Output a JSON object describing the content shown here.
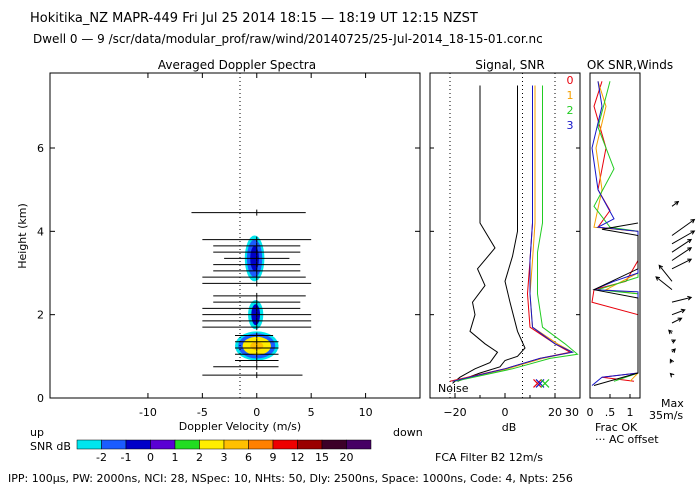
{
  "header": {
    "line1": "Hokitika_NZ   MAPR-449   Fri Jul 25 2014 18:15 — 18:19 UT 12:15 NZST",
    "line2": "Dwell  0 —  9   /scr/data/modular_prof/raw/wind/20140725/25-Jul-2014_18-15-01.cor.nc"
  },
  "panels": {
    "spectra_title": "Averaged Doppler Spectra",
    "signal_title": "Signal, SNR",
    "ok_title": "OK SNR,Winds"
  },
  "labels": {
    "up": "up",
    "down": "down",
    "snr_db": "SNR dB",
    "noise": "Noise",
    "frac_ok": "Frac OK",
    "ac_offset": "··· AC offset",
    "max_label": "Max",
    "max_value": "35m/s",
    "fca_filter": "FCA Filter B2 12m/s",
    "footer": "IPP: 100μs,  PW: 2000ns,  NCI: 28,  NSpec: 10,  NHts: 50,  Dly: 2500ns,  Space: 1000ns,  Code: 4,  Npts: 256"
  },
  "beam_legend": [
    {
      "label": "0",
      "color": "#e8000b"
    },
    {
      "label": "1",
      "color": "#f5a000"
    },
    {
      "label": "2",
      "color": "#22cc22"
    },
    {
      "label": "3",
      "color": "#1414c8"
    }
  ],
  "snr_scale": {
    "ticks": [
      "-2",
      "-1",
      "0",
      "1",
      "2",
      "3",
      "6",
      "9",
      "12",
      "15",
      "20"
    ],
    "colors": [
      "#00e5ee",
      "#1b5cff",
      "#0000c8",
      "#5a00d4",
      "#22dd22",
      "#ffee00",
      "#ffc000",
      "#ff8000",
      "#ee0000",
      "#9a0000",
      "#3c0028",
      "#460064"
    ]
  },
  "chart_data": [
    {
      "type": "heatmap",
      "title": "Averaged Doppler Spectra",
      "xlabel": "Doppler Velocity (m/s)",
      "ylabel": "Height (km)",
      "xlim": [
        -19,
        15
      ],
      "ylim": [
        0,
        7.8
      ],
      "x_ticks": [
        -10,
        -5,
        0,
        5,
        10
      ],
      "y_ticks": [
        0,
        2,
        4,
        6
      ],
      "blobs": [
        {
          "center_velocity": 0,
          "center_height": 1.25,
          "layers": [
            {
              "snr_db": -2,
              "half_width": 2.0,
              "half_height": 0.35
            },
            {
              "snr_db": -1,
              "half_width": 1.7,
              "half_height": 0.3
            },
            {
              "snr_db": 3,
              "half_width": 1.3,
              "half_height": 0.22
            },
            {
              "snr_db": 6,
              "half_width": 0.6,
              "half_height": 0.1
            }
          ]
        },
        {
          "center_velocity": -0.1,
          "center_height": 2.0,
          "layers": [
            {
              "snr_db": -2,
              "half_width": 0.7,
              "half_height": 0.35
            },
            {
              "snr_db": 0,
              "half_width": 0.4,
              "half_height": 0.25
            }
          ]
        },
        {
          "center_velocity": -0.2,
          "center_height": 3.35,
          "layers": [
            {
              "snr_db": -2,
              "half_width": 0.9,
              "half_height": 0.55
            },
            {
              "snr_db": -1,
              "half_width": 0.7,
              "half_height": 0.45
            },
            {
              "snr_db": 0,
              "half_width": 0.4,
              "half_height": 0.3
            }
          ]
        }
      ],
      "spectral_width_bars": [
        {
          "height": 0.55,
          "left": -5.0,
          "right": 4.2
        },
        {
          "height": 0.75,
          "left": -4.0,
          "right": 2.0
        },
        {
          "height": 0.9,
          "left": -2.0,
          "right": 2.0
        },
        {
          "height": 1.05,
          "left": -2.0,
          "right": 2.0
        },
        {
          "height": 1.2,
          "left": -2.0,
          "right": 2.0
        },
        {
          "height": 1.35,
          "left": -2.0,
          "right": 2.0
        },
        {
          "height": 1.5,
          "left": -2.0,
          "right": 1.5
        },
        {
          "height": 1.7,
          "left": -5.0,
          "right": 5.0
        },
        {
          "height": 1.85,
          "left": -5.0,
          "right": 5.0
        },
        {
          "height": 2.0,
          "left": -5.0,
          "right": 5.0
        },
        {
          "height": 2.15,
          "left": -5.0,
          "right": 4.0
        },
        {
          "height": 2.3,
          "left": -4.0,
          "right": 4.0
        },
        {
          "height": 2.45,
          "left": -4.0,
          "right": 4.5
        },
        {
          "height": 2.75,
          "left": -5.0,
          "right": 5.0
        },
        {
          "height": 2.9,
          "left": -5.0,
          "right": 4.5
        },
        {
          "height": 3.05,
          "left": -4.0,
          "right": 4.0
        },
        {
          "height": 3.2,
          "left": -4.0,
          "right": 4.0
        },
        {
          "height": 3.35,
          "left": -3.0,
          "right": 3.0
        },
        {
          "height": 3.5,
          "left": -4.0,
          "right": 4.0
        },
        {
          "height": 3.65,
          "left": -4.0,
          "right": 4.0
        },
        {
          "height": 3.8,
          "left": -5.0,
          "right": 5.0
        },
        {
          "height": 4.45,
          "left": -6.0,
          "right": 4.5
        }
      ]
    },
    {
      "type": "line",
      "title": "Signal, SNR",
      "xlabel": "dB",
      "xlim": [
        -30,
        30
      ],
      "ylim": [
        0,
        7.8
      ],
      "x_ticks": [
        -20,
        0,
        20
      ],
      "x_tick_labels": [
        "−20",
        "0",
        "20"
      ],
      "x_minor_ticks": [
        -10,
        10
      ],
      "x_extra_tick": 30,
      "vertical_reference_lines": [
        -22,
        7,
        20
      ],
      "series": [
        {
          "name": "noise",
          "color": "#000000",
          "points": [
            [
              -21,
              0.35
            ],
            [
              -18,
              0.5
            ],
            [
              -12,
              0.7
            ],
            [
              -6,
              0.85
            ],
            [
              -3,
              1.1
            ],
            [
              -8,
              1.3
            ],
            [
              -14,
              1.6
            ],
            [
              -12,
              2.0
            ],
            [
              -13,
              2.3
            ],
            [
              -8,
              2.7
            ],
            [
              -11,
              3.1
            ],
            [
              -4,
              3.6
            ],
            [
              -10,
              4.2
            ],
            [
              -10,
              5.5
            ],
            [
              -10,
              7.5
            ]
          ]
        },
        {
          "name": "signal",
          "color": "#000000",
          "points": [
            [
              -19,
              0.4
            ],
            [
              -10,
              0.6
            ],
            [
              -2,
              0.75
            ],
            [
              0,
              0.9
            ],
            [
              5,
              1.0
            ],
            [
              8,
              1.2
            ],
            [
              5,
              1.6
            ],
            [
              2,
              2.3
            ],
            [
              0,
              2.8
            ],
            [
              3,
              3.4
            ],
            [
              5,
              4.0
            ],
            [
              5,
              5.0
            ],
            [
              5,
              6.0
            ],
            [
              5,
              7.5
            ]
          ]
        },
        {
          "name": "0",
          "color": "#e8000b",
          "points": [
            [
              -22,
              0.4
            ],
            [
              0,
              0.7
            ],
            [
              14,
              0.95
            ],
            [
              26,
              1.1
            ],
            [
              20,
              1.3
            ],
            [
              10,
              1.7
            ],
            [
              9,
              2.5
            ],
            [
              10,
              3.3
            ],
            [
              11,
              4.2
            ],
            [
              11,
              5.5
            ],
            [
              11,
              7.5
            ]
          ]
        },
        {
          "name": "1",
          "color": "#f5a000",
          "points": [
            [
              -21,
              0.4
            ],
            [
              1,
              0.7
            ],
            [
              15,
              0.95
            ],
            [
              27,
              1.1
            ],
            [
              21,
              1.3
            ],
            [
              11,
              1.7
            ],
            [
              10,
              2.5
            ],
            [
              11,
              3.3
            ],
            [
              12,
              4.2
            ],
            [
              12,
              5.5
            ],
            [
              12,
              7.5
            ]
          ]
        },
        {
          "name": "2",
          "color": "#22cc22",
          "points": [
            [
              -20,
              0.4
            ],
            [
              3,
              0.7
            ],
            [
              18,
              0.95
            ],
            [
              29,
              1.05
            ],
            [
              24,
              1.3
            ],
            [
              15,
              1.7
            ],
            [
              13,
              2.5
            ],
            [
              13,
              3.5
            ],
            [
              15,
              4.2
            ],
            [
              15,
              5.5
            ],
            [
              15,
              7.5
            ]
          ]
        },
        {
          "name": "3",
          "color": "#1414c8",
          "points": [
            [
              -21,
              0.4
            ],
            [
              0,
              0.7
            ],
            [
              14,
              0.95
            ],
            [
              27,
              1.1
            ],
            [
              20,
              1.3
            ],
            [
              11,
              1.7
            ],
            [
              10,
              2.5
            ],
            [
              10,
              3.3
            ],
            [
              11,
              4.2
            ],
            [
              11,
              5.5
            ],
            [
              11,
              7.5
            ]
          ]
        }
      ],
      "markers": [
        {
          "value": 13,
          "height": 0.35,
          "color": "#e8000b"
        },
        {
          "value": 14,
          "height": 0.35,
          "color": "#1414c8"
        },
        {
          "value": 16,
          "height": 0.35,
          "color": "#22cc22"
        }
      ]
    },
    {
      "type": "line",
      "title": "OK SNR,Winds",
      "xlim": [
        0,
        1.25
      ],
      "ylim": [
        0,
        7.8
      ],
      "x_ticks": [
        0,
        0.5,
        1
      ],
      "x_tick_labels": [
        "0",
        ".5",
        "1"
      ],
      "series": [
        {
          "name": "0",
          "color": "#e8000b",
          "points": [
            [
              1.1,
              0.4
            ],
            [
              0.3,
              0.5
            ],
            [
              1.2,
              0.6
            ],
            [
              1.2,
              2.0
            ],
            [
              0.05,
              2.3
            ],
            [
              0.1,
              2.6
            ],
            [
              0.9,
              2.8
            ],
            [
              1.2,
              3.3
            ],
            [
              1.2,
              4.0
            ],
            [
              0.2,
              4.1
            ],
            [
              0.5,
              4.5
            ],
            [
              0.2,
              5.0
            ],
            [
              0.4,
              6.0
            ],
            [
              0.1,
              7.0
            ],
            [
              0.3,
              7.6
            ]
          ]
        },
        {
          "name": "1",
          "color": "#f5a000",
          "points": [
            [
              1.0,
              0.4
            ],
            [
              1.2,
              0.6
            ],
            [
              1.2,
              2.5
            ],
            [
              0.4,
              2.6
            ],
            [
              1.2,
              3.0
            ],
            [
              1.2,
              4.0
            ],
            [
              0.1,
              4.1
            ],
            [
              0.3,
              5.0
            ],
            [
              0.15,
              6.0
            ],
            [
              0.4,
              7.0
            ],
            [
              0.2,
              7.6
            ]
          ]
        },
        {
          "name": "2",
          "color": "#22cc22",
          "points": [
            [
              0.6,
              0.4
            ],
            [
              1.2,
              0.6
            ],
            [
              1.2,
              2.5
            ],
            [
              0.2,
              2.6
            ],
            [
              1.2,
              2.9
            ],
            [
              1.2,
              4.0
            ],
            [
              0.5,
              4.1
            ],
            [
              0.1,
              4.6
            ],
            [
              0.6,
              5.5
            ],
            [
              0.2,
              6.5
            ],
            [
              0.5,
              7.6
            ]
          ]
        },
        {
          "name": "3",
          "color": "#1414c8",
          "points": [
            [
              0.05,
              0.3
            ],
            [
              0.3,
              0.5
            ],
            [
              1.2,
              0.6
            ],
            [
              1.2,
              2.55
            ],
            [
              0.1,
              2.6
            ],
            [
              0.6,
              2.8
            ],
            [
              1.2,
              3.0
            ],
            [
              1.2,
              4.0
            ],
            [
              0.2,
              4.1
            ],
            [
              0.6,
              4.3
            ],
            [
              0.2,
              5.0
            ],
            [
              0.05,
              6.0
            ],
            [
              0.3,
              7.0
            ],
            [
              0.2,
              7.6
            ]
          ]
        },
        {
          "name": "frac_ok",
          "color": "#000000",
          "points": [
            [
              0.1,
              0.3
            ],
            [
              1.2,
              0.6
            ],
            [
              1.2,
              2.4
            ],
            [
              0.1,
              2.6
            ],
            [
              1.2,
              3.1
            ],
            [
              1.2,
              3.9
            ],
            [
              0.3,
              4.05
            ],
            [
              1.2,
              4.2
            ]
          ]
        }
      ]
    },
    {
      "type": "scatter",
      "title": "Winds",
      "max_speed_ms": 35,
      "barbs": [
        {
          "height": 0.55,
          "u": -1,
          "v": 1
        },
        {
          "height": 0.85,
          "u": -1,
          "v": 2
        },
        {
          "height": 1.1,
          "u": 2,
          "v": 2
        },
        {
          "height": 1.35,
          "u": 2,
          "v": 1
        },
        {
          "height": 1.55,
          "u": -2,
          "v": 2
        },
        {
          "height": 1.8,
          "u": 6,
          "v": 3
        },
        {
          "height": 2.0,
          "u": 8,
          "v": 3
        },
        {
          "height": 2.3,
          "u": 12,
          "v": 3
        },
        {
          "height": 2.6,
          "u": -10,
          "v": 8
        },
        {
          "height": 2.8,
          "u": -8,
          "v": 10
        },
        {
          "height": 3.1,
          "u": 12,
          "v": 6
        },
        {
          "height": 3.3,
          "u": 12,
          "v": 8
        },
        {
          "height": 3.5,
          "u": 12,
          "v": 8
        },
        {
          "height": 3.7,
          "u": 14,
          "v": 8
        },
        {
          "height": 3.9,
          "u": 14,
          "v": 10
        },
        {
          "height": 4.6,
          "u": 4,
          "v": 3
        }
      ]
    }
  ]
}
